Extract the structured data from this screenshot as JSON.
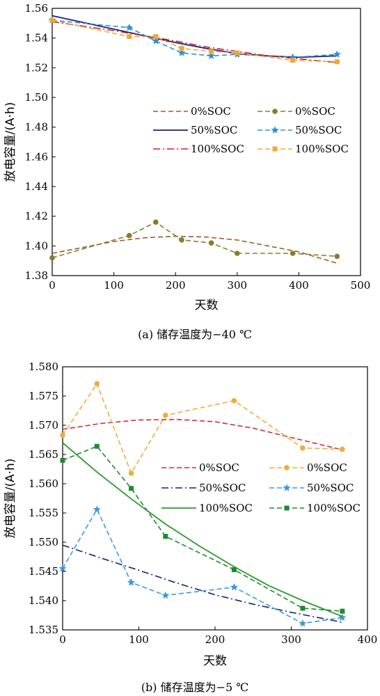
{
  "chart_data": [
    {
      "type": "line",
      "xlabel": "天数",
      "ylabel": "放电容量/(A·h)",
      "caption": "(a) 储存温度为−40 ℃",
      "xlim": [
        0,
        500
      ],
      "ylim": [
        1.38,
        1.56
      ],
      "xticks": [
        "0",
        "100",
        "200",
        "300",
        "400",
        "500"
      ],
      "yticks": [
        "1.38",
        "1.40",
        "1.42",
        "1.44",
        "1.46",
        "1.48",
        "1.50",
        "1.52",
        "1.54",
        "1.56"
      ],
      "legend_position": "center-right",
      "series": [
        {
          "name": "0%SOC",
          "style": "dashed",
          "color": "#9c5a2c",
          "marker": "none",
          "x": [
            0,
            50,
            100,
            150,
            200,
            250,
            300,
            350,
            400,
            465
          ],
          "y": [
            1.395,
            1.399,
            1.403,
            1.4055,
            1.4065,
            1.406,
            1.404,
            1.4,
            1.396,
            1.388
          ]
        },
        {
          "name": "0%SOC",
          "style": "dashed",
          "color": "#8c7a2c",
          "marker": "circle",
          "x": [
            0,
            125,
            168,
            210,
            258,
            300,
            390,
            462
          ],
          "y": [
            1.392,
            1.407,
            1.416,
            1.404,
            1.402,
            1.395,
            1.395,
            1.393
          ]
        },
        {
          "name": "50%SOC",
          "style": "solid",
          "color": "#1b1f7a",
          "marker": "none",
          "x": [
            0,
            50,
            100,
            150,
            200,
            250,
            300,
            350,
            400,
            462
          ],
          "y": [
            1.555,
            1.5505,
            1.546,
            1.5415,
            1.537,
            1.533,
            1.5295,
            1.528,
            1.527,
            1.528
          ]
        },
        {
          "name": "50%SOC",
          "style": "dashed",
          "color": "#2e8fd8",
          "marker": "star",
          "x": [
            0,
            125,
            168,
            210,
            258,
            300,
            390,
            462
          ],
          "y": [
            1.552,
            1.547,
            1.538,
            1.53,
            1.528,
            1.529,
            1.527,
            1.529
          ]
        },
        {
          "name": "100%SOC",
          "style": "dashdot",
          "color": "#c8202a",
          "marker": "none",
          "x": [
            0,
            50,
            100,
            150,
            200,
            250,
            300,
            350,
            400,
            462
          ],
          "y": [
            1.551,
            1.548,
            1.545,
            1.5415,
            1.538,
            1.534,
            1.531,
            1.528,
            1.526,
            1.5235
          ]
        },
        {
          "name": "100%SOC",
          "style": "dashed",
          "color": "#f0a832",
          "marker": "square",
          "x": [
            0,
            125,
            168,
            210,
            258,
            300,
            390,
            462
          ],
          "y": [
            1.552,
            1.541,
            1.541,
            1.533,
            1.531,
            1.53,
            1.525,
            1.524
          ]
        }
      ]
    },
    {
      "type": "line",
      "xlabel": "天数",
      "ylabel": "放电容量/(A·h)",
      "caption": "(b) 储存温度为−5 ℃",
      "xlim": [
        0,
        400
      ],
      "ylim": [
        1.535,
        1.58
      ],
      "xticks": [
        "0",
        "100",
        "200",
        "300",
        "400"
      ],
      "yticks": [
        "1.535",
        "1.540",
        "1.545",
        "1.550",
        "1.555",
        "1.560",
        "1.565",
        "1.570",
        "1.575",
        "1.580"
      ],
      "legend_position": "center-right",
      "series": [
        {
          "name": "0%SOC",
          "style": "dashed",
          "color": "#d42a2a",
          "marker": "none",
          "x": [
            0,
            50,
            100,
            150,
            200,
            250,
            300,
            367
          ],
          "y": [
            1.5693,
            1.5703,
            1.5709,
            1.571,
            1.5706,
            1.5695,
            1.5679,
            1.5658
          ]
        },
        {
          "name": "0%SOC",
          "style": "dashed",
          "color": "#f0ac3a",
          "marker": "circle",
          "x": [
            0,
            45,
            90,
            135,
            225,
            315,
            367
          ],
          "y": [
            1.5683,
            1.5771,
            1.5618,
            1.5717,
            1.5742,
            1.5661,
            1.5659
          ]
        },
        {
          "name": "50%SOC",
          "style": "dashdot",
          "color": "#1b1f7a",
          "marker": "none",
          "x": [
            0,
            50,
            100,
            150,
            200,
            250,
            300,
            367
          ],
          "y": [
            1.5495,
            1.5473,
            1.5452,
            1.543,
            1.541,
            1.5394,
            1.538,
            1.5363
          ]
        },
        {
          "name": "50%SOC",
          "style": "dashed",
          "color": "#3a9ae0",
          "marker": "star",
          "x": [
            0,
            45,
            90,
            135,
            225,
            315,
            367
          ],
          "y": [
            1.5455,
            1.5556,
            1.5431,
            1.5409,
            1.5423,
            1.5361,
            1.5371
          ]
        },
        {
          "name": "100%SOC",
          "style": "solid",
          "color": "#2a9a2a",
          "marker": "none",
          "x": [
            0,
            45,
            90,
            135,
            180,
            225,
            270,
            315,
            367
          ],
          "y": [
            1.567,
            1.562,
            1.5574,
            1.5531,
            1.5493,
            1.5458,
            1.5426,
            1.54,
            1.5373
          ]
        },
        {
          "name": "100%SOC",
          "style": "dashed",
          "color": "#1e8a30",
          "marker": "square",
          "x": [
            0,
            45,
            90,
            135,
            225,
            315,
            367
          ],
          "y": [
            1.564,
            1.5664,
            1.5592,
            1.551,
            1.5453,
            1.5387,
            1.5382
          ]
        }
      ]
    }
  ]
}
